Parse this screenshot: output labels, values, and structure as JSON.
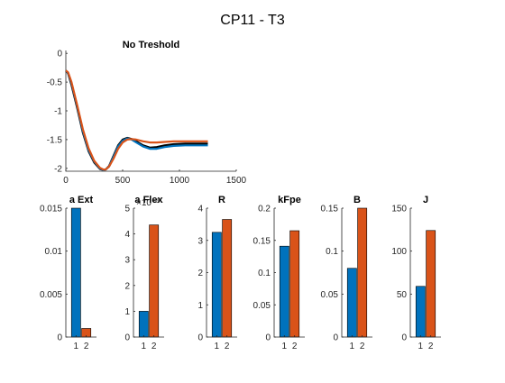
{
  "figure": {
    "title": "CP11 - T3"
  },
  "colors": {
    "blue": "#0072BD",
    "orange": "#D95319",
    "black": "#000000",
    "axis": "#262626"
  },
  "chart_data": [
    {
      "type": "line",
      "title": "No Treshold",
      "xlim": [
        0,
        1500
      ],
      "ylim": [
        -2.05,
        0.05
      ],
      "xticks": [
        0,
        500,
        1000,
        1500
      ],
      "yticks": [
        0,
        -0.5,
        -1,
        -1.5,
        -2
      ],
      "series": [
        {
          "color": "#000000",
          "x": [
            0,
            20,
            50,
            100,
            150,
            200,
            250,
            300,
            330,
            350,
            380,
            420,
            460,
            500,
            540,
            580,
            620,
            680,
            740,
            800,
            870,
            950,
            1050,
            1150,
            1250
          ],
          "y": [
            -0.3,
            -0.35,
            -0.55,
            -0.95,
            -1.38,
            -1.7,
            -1.9,
            -2.01,
            -2.03,
            -2.02,
            -1.96,
            -1.78,
            -1.6,
            -1.5,
            -1.47,
            -1.49,
            -1.53,
            -1.6,
            -1.64,
            -1.63,
            -1.6,
            -1.58,
            -1.57,
            -1.57,
            -1.57
          ]
        },
        {
          "color": "#0072BD",
          "x": [
            0,
            20,
            50,
            100,
            150,
            200,
            250,
            300,
            330,
            350,
            380,
            420,
            460,
            500,
            540,
            580,
            620,
            680,
            740,
            800,
            870,
            950,
            1050,
            1150,
            1250
          ],
          "y": [
            -0.3,
            -0.34,
            -0.52,
            -0.92,
            -1.35,
            -1.68,
            -1.88,
            -2.0,
            -2.03,
            -2.02,
            -1.97,
            -1.8,
            -1.62,
            -1.52,
            -1.48,
            -1.5,
            -1.55,
            -1.62,
            -1.66,
            -1.66,
            -1.63,
            -1.61,
            -1.6,
            -1.6,
            -1.6
          ]
        },
        {
          "color": "#D95319",
          "x": [
            0,
            20,
            50,
            100,
            150,
            200,
            250,
            300,
            330,
            350,
            380,
            420,
            460,
            500,
            540,
            580,
            620,
            680,
            740,
            800,
            870,
            950,
            1050,
            1150,
            1250
          ],
          "y": [
            -0.3,
            -0.33,
            -0.5,
            -0.9,
            -1.32,
            -1.65,
            -1.87,
            -1.99,
            -2.02,
            -2.02,
            -1.97,
            -1.83,
            -1.66,
            -1.55,
            -1.5,
            -1.49,
            -1.5,
            -1.53,
            -1.55,
            -1.55,
            -1.54,
            -1.53,
            -1.53,
            -1.53,
            -1.53
          ]
        }
      ]
    },
    {
      "type": "bar",
      "title": "a Ext",
      "categories": [
        "1",
        "2"
      ],
      "values": [
        0.015,
        0.001
      ],
      "ylim": [
        0,
        0.015
      ],
      "yticks": [
        0,
        0.005,
        0.01,
        0.015
      ],
      "yticklabels": [
        "0",
        "0.005",
        "0.01",
        "0.015"
      ],
      "exponent": ""
    },
    {
      "type": "bar",
      "title": "a Flex",
      "categories": [
        "1",
        "2"
      ],
      "values": [
        1.0,
        4.35
      ],
      "ylim": [
        0,
        5
      ],
      "yticks": [
        0,
        1,
        2,
        3,
        4,
        5
      ],
      "yticklabels": [
        "0",
        "1",
        "2",
        "3",
        "4",
        "5"
      ],
      "exponent": "×10⁻³"
    },
    {
      "type": "bar",
      "title": "R",
      "categories": [
        "1",
        "2"
      ],
      "values": [
        3.25,
        3.65
      ],
      "ylim": [
        0,
        4
      ],
      "yticks": [
        0,
        1,
        2,
        3,
        4
      ],
      "yticklabels": [
        "0",
        "1",
        "2",
        "3",
        "4"
      ],
      "exponent": ""
    },
    {
      "type": "bar",
      "title": "kFpe",
      "categories": [
        "1",
        "2"
      ],
      "values": [
        0.141,
        0.165
      ],
      "ylim": [
        0,
        0.2
      ],
      "yticks": [
        0,
        0.05,
        0.1,
        0.15,
        0.2
      ],
      "yticklabels": [
        "0",
        "0.05",
        "0.1",
        "0.15",
        "0.2"
      ],
      "exponent": ""
    },
    {
      "type": "bar",
      "title": "B",
      "categories": [
        "1",
        "2"
      ],
      "values": [
        0.08,
        0.15
      ],
      "ylim": [
        0,
        0.15
      ],
      "yticks": [
        0,
        0.05,
        0.1,
        0.15
      ],
      "yticklabels": [
        "0",
        "0.05",
        "0.1",
        "0.15"
      ],
      "exponent": ""
    },
    {
      "type": "bar",
      "title": "J",
      "categories": [
        "1",
        "2"
      ],
      "values": [
        59,
        124
      ],
      "ylim": [
        0,
        150
      ],
      "yticks": [
        0,
        50,
        100,
        150
      ],
      "yticklabels": [
        "0",
        "50",
        "100",
        "150"
      ],
      "exponent": ""
    }
  ]
}
